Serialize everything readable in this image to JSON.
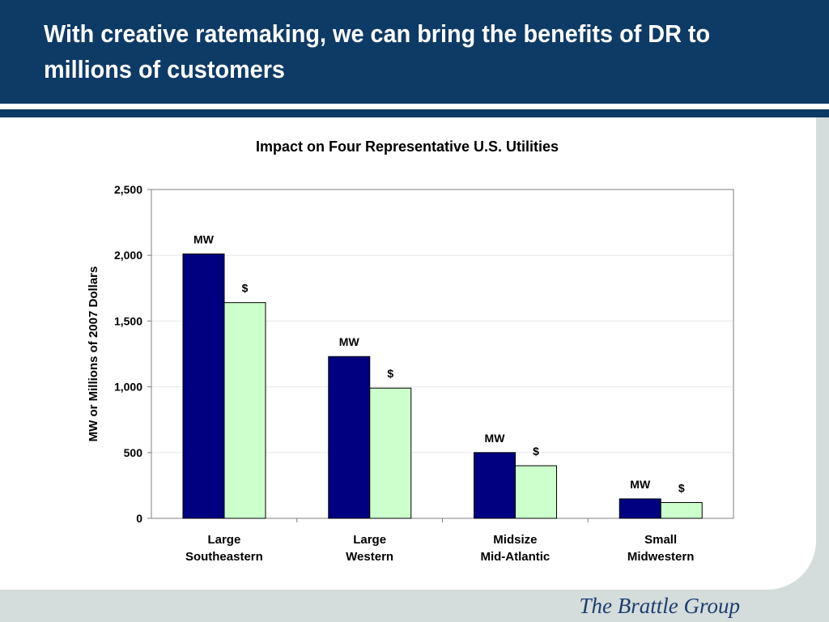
{
  "slide": {
    "title": "With creative ratemaking, we can bring the benefits of DR to millions of customers",
    "logo_text": "The Brattle Group",
    "colors": {
      "header": "#0e3a66",
      "background": "#d5dcdc",
      "mw_bar": "#000080",
      "dollar_bar": "#ccffcc"
    }
  },
  "chart_data": {
    "type": "bar",
    "title": "Impact on Four Representative U.S. Utilities",
    "ylabel": "MW or Millions of 2007 Dollars",
    "xlabel": "",
    "ylim": [
      0,
      2500
    ],
    "yticks": [
      0,
      500,
      1000,
      1500,
      2000,
      2500
    ],
    "ytick_labels": [
      "0",
      "500",
      "1,000",
      "1,500",
      "2,000",
      "2,500"
    ],
    "categories": [
      [
        "Large",
        "Southeastern"
      ],
      [
        "Large",
        "Western"
      ],
      [
        "Midsize",
        "Mid-Atlantic"
      ],
      [
        "Small",
        "Midwestern"
      ]
    ],
    "series": [
      {
        "label": "MW",
        "color": "#000080",
        "values": [
          2010,
          1230,
          500,
          148
        ]
      },
      {
        "label": "$",
        "color": "#ccffcc",
        "values": [
          1640,
          990,
          400,
          120
        ]
      }
    ],
    "grid": true,
    "legend": "none"
  }
}
